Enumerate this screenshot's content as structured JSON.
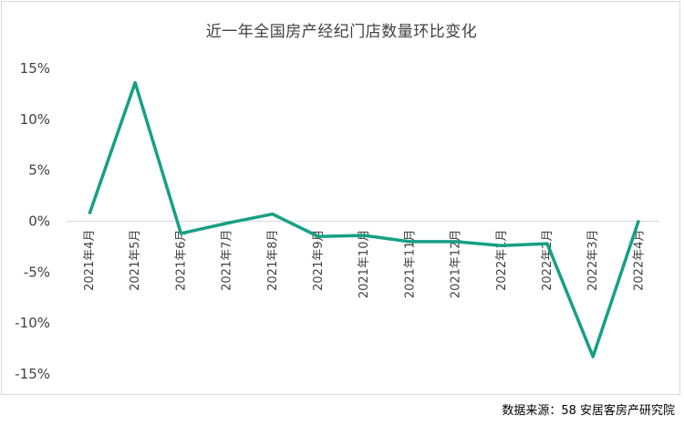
{
  "chart_data": {
    "type": "line",
    "title": "近一年全国房产经纪门店数量环比变化",
    "categories": [
      "2021年4月",
      "2021年5月",
      "2021年6月",
      "2021年7月",
      "2021年8月",
      "2021年9月",
      "2021年10月",
      "2021年11月",
      "2021年12月",
      "2022年1月",
      "2022年2月",
      "2022年3月",
      "2022年4月"
    ],
    "series": [
      {
        "values": [
          0.7,
          13.6,
          -1.2,
          -0.2,
          0.7,
          -1.5,
          -1.4,
          -2.0,
          -2.0,
          -2.4,
          -2.2,
          -13.3,
          0.1
        ]
      }
    ],
    "yticks": [
      "15%",
      "10%",
      "5%",
      "0%",
      "-5%",
      "-10%",
      "-15%"
    ],
    "ylim": [
      -15,
      15
    ],
    "line_color": "#16a085",
    "grid": false
  },
  "source": "数据来源：58 安居客房产研究院"
}
